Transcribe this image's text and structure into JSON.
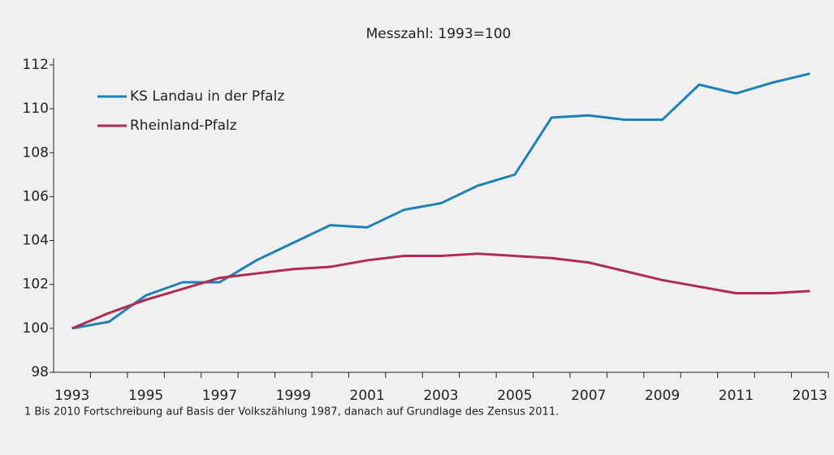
{
  "chart_data": {
    "type": "line",
    "title": "Messzahl: 1993=100",
    "categories": [
      "1993",
      null,
      "1995",
      null,
      "1997",
      null,
      "1999",
      null,
      "2001",
      null,
      "2003",
      null,
      "2005",
      null,
      "2007",
      null,
      "2009",
      null,
      "2011",
      null,
      "2013"
    ],
    "series": [
      {
        "name": "KS Landau in der Pfalz",
        "color": "#1f80b5",
        "values": [
          100.0,
          100.3,
          101.5,
          102.1,
          102.1,
          103.1,
          103.9,
          104.7,
          104.6,
          105.4,
          105.7,
          106.5,
          107.0,
          109.6,
          109.7,
          109.5,
          109.5,
          111.1,
          110.7,
          111.2,
          111.6
        ]
      },
      {
        "name": "Rheinland-Pfalz",
        "color": "#b02a52",
        "values": [
          100.0,
          100.7,
          101.3,
          101.8,
          102.3,
          102.5,
          102.7,
          102.8,
          103.1,
          103.3,
          103.3,
          103.4,
          103.3,
          103.2,
          103.0,
          102.6,
          102.2,
          101.9,
          101.6,
          101.6,
          101.7
        ]
      }
    ],
    "ylim": [
      98,
      112
    ],
    "yticks": [
      98,
      100,
      102,
      104,
      106,
      108,
      110,
      112
    ],
    "legend": "top-left",
    "footnote": "1 Bis 2010 Fortschreibung auf Basis der Volkszählung 1987, danach auf Grundlage des Zensus 2011."
  }
}
